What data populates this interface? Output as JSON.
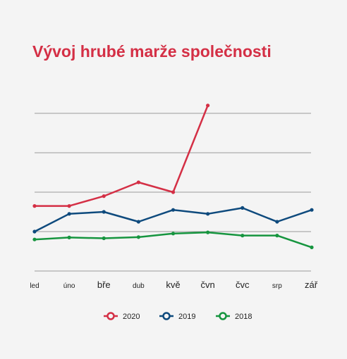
{
  "chart_data": {
    "type": "line",
    "title": "Vývoj hrubé marže společnosti",
    "categories": [
      "led",
      "úno",
      "bře",
      "dub",
      "kvě",
      "čvn",
      "čvc",
      "srp",
      "zář"
    ],
    "series": [
      {
        "name": "2020",
        "color": "#d42f45",
        "values": [
          16.5,
          16.5,
          19.0,
          22.5,
          20.0,
          42.0,
          null,
          null,
          null
        ]
      },
      {
        "name": "2019",
        "color": "#0e4a7d",
        "values": [
          10.0,
          14.5,
          15.0,
          12.5,
          15.5,
          14.5,
          16.0,
          12.5,
          15.5
        ]
      },
      {
        "name": "2018",
        "color": "#16953f",
        "values": [
          8.0,
          8.5,
          8.3,
          8.6,
          9.5,
          9.8,
          9.0,
          9.0,
          6.0
        ]
      }
    ],
    "ylim": [
      0,
      40
    ],
    "y_ticks_labeled": false,
    "grid": true,
    "legend": "bottom"
  }
}
